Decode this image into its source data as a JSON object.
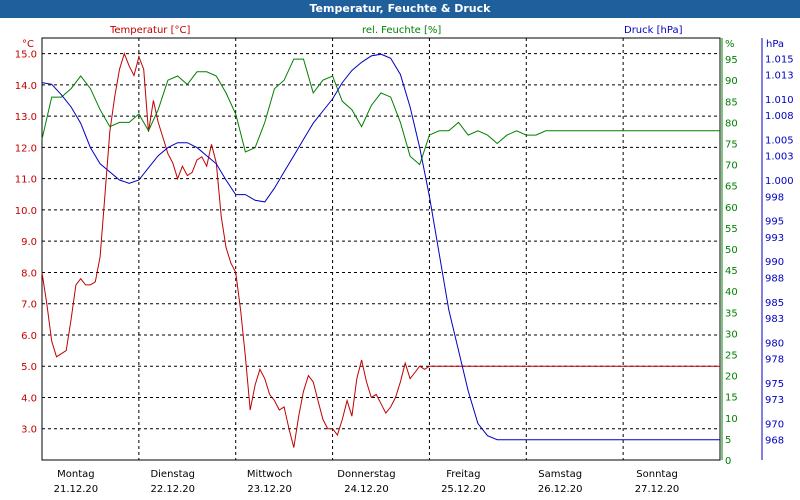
{
  "window_title": "Temperatur, Feuchte & Druck",
  "colors": {
    "temperature": "#c00000",
    "humidity": "#008000",
    "pressure": "#0000c0",
    "title_bar": "#1f5f9c",
    "grid": "#000000"
  },
  "chart_data": {
    "type": "line",
    "title": "Temperatur, Feuchte & Druck",
    "x_axis": {
      "unit": "days",
      "range": [
        "2020-12-21",
        "2020-12-28"
      ],
      "ticks": [
        {
          "day": "Montag",
          "date": "21.12.20"
        },
        {
          "day": "Dienstag",
          "date": "22.12.20"
        },
        {
          "day": "Mittwoch",
          "date": "23.12.20"
        },
        {
          "day": "Donnerstag",
          "date": "24.12.20"
        },
        {
          "day": "Freitag",
          "date": "25.12.20"
        },
        {
          "day": "Samstag",
          "date": "26.12.20"
        },
        {
          "day": "Sonntag",
          "date": "27.12.20"
        }
      ]
    },
    "grid": true,
    "y_axes": {
      "temperature": {
        "label": "Temperatur [°C]",
        "unit": "°C",
        "range": [
          2.0,
          15.5
        ],
        "ticks": [
          "15.0",
          "14.0",
          "13.0",
          "12.0",
          "11.0",
          "10.0",
          "9.0",
          "8.0",
          "7.0",
          "6.0",
          "5.0",
          "4.0",
          "3.0"
        ]
      },
      "humidity": {
        "label": "rel. Feuchte [%]",
        "unit": "%",
        "range": [
          0,
          100
        ],
        "ticks": [
          "95",
          "90",
          "85",
          "80",
          "75",
          "70",
          "65",
          "60",
          "55",
          "50",
          "45",
          "40",
          "35",
          "30",
          "25",
          "20",
          "15",
          "10",
          "5",
          "0"
        ]
      },
      "pressure": {
        "label": "Druck [hPa]",
        "unit": "hPa",
        "range": [
          965.5,
          1017.5
        ],
        "ticks": [
          "1.015",
          "1.013",
          "1.010",
          "1.008",
          "1.005",
          "1.003",
          "1.000",
          "998",
          "995",
          "993",
          "990",
          "988",
          "985",
          "983",
          "980",
          "978",
          "975",
          "973",
          "970",
          "968"
        ]
      }
    },
    "series": [
      {
        "name": "Temperatur [°C]",
        "axis": "temperature",
        "x": [
          0,
          0.05,
          0.1,
          0.15,
          0.25,
          0.3,
          0.35,
          0.4,
          0.45,
          0.5,
          0.55,
          0.6,
          0.65,
          0.7,
          0.75,
          0.8,
          0.85,
          0.9,
          0.95,
          1.0,
          1.05,
          1.1,
          1.15,
          1.2,
          1.25,
          1.3,
          1.35,
          1.4,
          1.45,
          1.5,
          1.55,
          1.6,
          1.65,
          1.7,
          1.75,
          1.8,
          1.85,
          1.9,
          1.95,
          2.0,
          2.05,
          2.1,
          2.15,
          2.2,
          2.25,
          2.3,
          2.35,
          2.4,
          2.45,
          2.5,
          2.55,
          2.6,
          2.65,
          2.7,
          2.75,
          2.8,
          2.85,
          2.9,
          2.95,
          3.0,
          3.05,
          3.1,
          3.15,
          3.2,
          3.25,
          3.3,
          3.35,
          3.4,
          3.45,
          3.5,
          3.55,
          3.6,
          3.65,
          3.7,
          3.75,
          3.8,
          3.85,
          3.9,
          3.95,
          4.0,
          4.05,
          4.1,
          4.15,
          4.2,
          4.25,
          4.3,
          4.35,
          4.4,
          4.45,
          4.5,
          4.55,
          4.6,
          4.65,
          4.7,
          4.75,
          4.8,
          4.85,
          4.9,
          4.95,
          5.0,
          5.05,
          5.1,
          5.15,
          5.2,
          5.25,
          5.3,
          5.35,
          5.4,
          5.45,
          5.5,
          5.55,
          5.6,
          5.65,
          5.7,
          5.75,
          5.8,
          5.85,
          5.9,
          5.95,
          6.0,
          6.05,
          6.1,
          6.15,
          6.2,
          6.25,
          6.3,
          6.35,
          6.4,
          6.45,
          6.5,
          6.55,
          6.6,
          6.65,
          6.7,
          6.75,
          6.8,
          6.85,
          6.9,
          6.95,
          7.0
        ],
        "values": [
          8.0,
          7.0,
          5.8,
          5.3,
          5.5,
          6.5,
          7.6,
          7.8,
          7.6,
          7.6,
          7.7,
          8.5,
          10.5,
          12.5,
          13.6,
          14.5,
          15.0,
          14.6,
          14.3,
          14.9,
          14.5,
          12.5,
          13.5,
          12.8,
          12.3,
          11.8,
          11.5,
          11.0,
          11.4,
          11.1,
          11.2,
          11.6,
          11.7,
          11.4,
          12.1,
          11.5,
          9.8,
          8.8,
          8.3,
          8.0,
          6.8,
          5.3,
          3.6,
          4.4,
          4.9,
          4.6,
          4.1,
          3.9,
          3.6,
          3.7,
          3.0,
          2.4,
          3.4,
          4.2,
          4.7,
          4.5,
          3.9,
          3.3,
          3.0,
          3.0,
          2.8,
          3.3,
          3.9,
          3.4,
          4.6,
          5.2,
          4.5,
          4.0,
          4.1,
          3.8,
          3.5,
          3.7,
          4.0,
          4.5,
          5.1,
          4.6,
          4.8,
          5.0,
          4.9,
          5.0,
          5.0,
          5.0,
          5.0,
          5.0,
          5.0,
          5.0,
          5.0,
          5.0,
          5.0,
          5.0,
          5.0,
          5.0,
          5.0,
          5.0,
          5.0,
          5.0,
          5.0,
          5.0,
          5.0,
          5.0,
          5.0,
          5.0,
          5.0,
          5.0,
          5.0,
          5.0,
          5.0,
          5.0,
          5.0,
          5.0,
          5.0,
          5.0,
          5.0,
          5.0,
          5.0,
          5.0,
          5.0,
          5.0,
          5.0,
          5.0,
          5.0,
          5.0,
          5.0,
          5.0,
          5.0,
          5.0,
          5.0,
          5.0,
          5.0,
          5.0,
          5.0,
          5.0,
          5.0,
          5.0,
          5.0,
          5.0,
          5.0,
          5.0,
          5.0,
          5.0
        ]
      },
      {
        "name": "rel. Feuchte [%]",
        "axis": "humidity",
        "x": [
          0,
          0.1,
          0.2,
          0.3,
          0.4,
          0.5,
          0.6,
          0.7,
          0.8,
          0.9,
          1.0,
          1.1,
          1.2,
          1.3,
          1.4,
          1.5,
          1.6,
          1.7,
          1.8,
          1.9,
          2.0,
          2.1,
          2.2,
          2.3,
          2.4,
          2.5,
          2.6,
          2.7,
          2.8,
          2.9,
          3.0,
          3.1,
          3.2,
          3.3,
          3.4,
          3.5,
          3.6,
          3.7,
          3.8,
          3.9,
          4.0,
          4.1,
          4.2,
          4.3,
          4.4,
          4.5,
          4.6,
          4.7,
          4.8,
          4.9,
          5.0,
          5.1,
          5.2,
          5.3,
          5.4,
          5.5,
          5.6,
          5.7,
          5.8,
          5.9,
          6.0,
          6.1,
          6.2,
          6.3,
          6.4,
          6.5,
          6.6,
          6.7,
          6.8,
          6.9,
          7.0
        ],
        "values": [
          76,
          86,
          86,
          88,
          91,
          88,
          83,
          79,
          80,
          80,
          82,
          78,
          83,
          90,
          91,
          89,
          92,
          92,
          91,
          87,
          82,
          73,
          74,
          80,
          88,
          90,
          95,
          95,
          87,
          90,
          91,
          85,
          83,
          79,
          84,
          87,
          86,
          80,
          72,
          70,
          77,
          78,
          78,
          80,
          77,
          78,
          77,
          75,
          77,
          78,
          77,
          77,
          78,
          78,
          78,
          78,
          78,
          78,
          78,
          78,
          78,
          78,
          78,
          78,
          78,
          78,
          78,
          78,
          78,
          78,
          78
        ]
      },
      {
        "name": "Druck [hPa]",
        "axis": "pressure",
        "x": [
          0,
          0.1,
          0.2,
          0.3,
          0.4,
          0.5,
          0.6,
          0.7,
          0.8,
          0.9,
          1.0,
          1.1,
          1.2,
          1.3,
          1.4,
          1.5,
          1.6,
          1.7,
          1.8,
          1.9,
          2.0,
          2.1,
          2.2,
          2.3,
          2.4,
          2.5,
          2.6,
          2.7,
          2.8,
          2.9,
          3.0,
          3.1,
          3.2,
          3.3,
          3.4,
          3.5,
          3.6,
          3.7,
          3.8,
          3.9,
          4.0,
          4.1,
          4.2,
          4.3,
          4.4,
          4.5,
          4.6,
          4.7,
          4.8,
          4.9,
          5.0,
          5.1,
          5.2,
          5.3,
          5.4,
          5.5,
          5.6,
          5.7,
          5.8,
          5.9,
          6.0,
          6.1,
          6.2,
          6.3,
          6.4,
          6.5,
          6.6,
          6.7,
          6.8,
          6.9,
          7.0
        ],
        "values": [
          1012.0,
          1011.8,
          1010.5,
          1009.0,
          1007.0,
          1004.0,
          1002.0,
          1001.0,
          1000.0,
          999.6,
          1000.0,
          1001.5,
          1003.0,
          1004.0,
          1004.6,
          1004.6,
          1004.0,
          1003.0,
          1002.0,
          1000.0,
          998.2,
          998.2,
          997.5,
          997.3,
          999.0,
          1001.0,
          1003.0,
          1005.0,
          1007.0,
          1008.5,
          1010.0,
          1012.0,
          1013.5,
          1014.5,
          1015.3,
          1015.5,
          1015.0,
          1013.0,
          1009.0,
          1004.0,
          998.0,
          991.0,
          984.0,
          979.0,
          974.0,
          970.0,
          968.5,
          968.0,
          968.0,
          968.0,
          968.0,
          968.0,
          968.0,
          968.0,
          968.0,
          968.0,
          968.0,
          968.0,
          968.0,
          968.0,
          968.0,
          968.0,
          968.0,
          968.0,
          968.0,
          968.0,
          968.0,
          968.0,
          968.0,
          968.0,
          968.0
        ]
      }
    ]
  }
}
